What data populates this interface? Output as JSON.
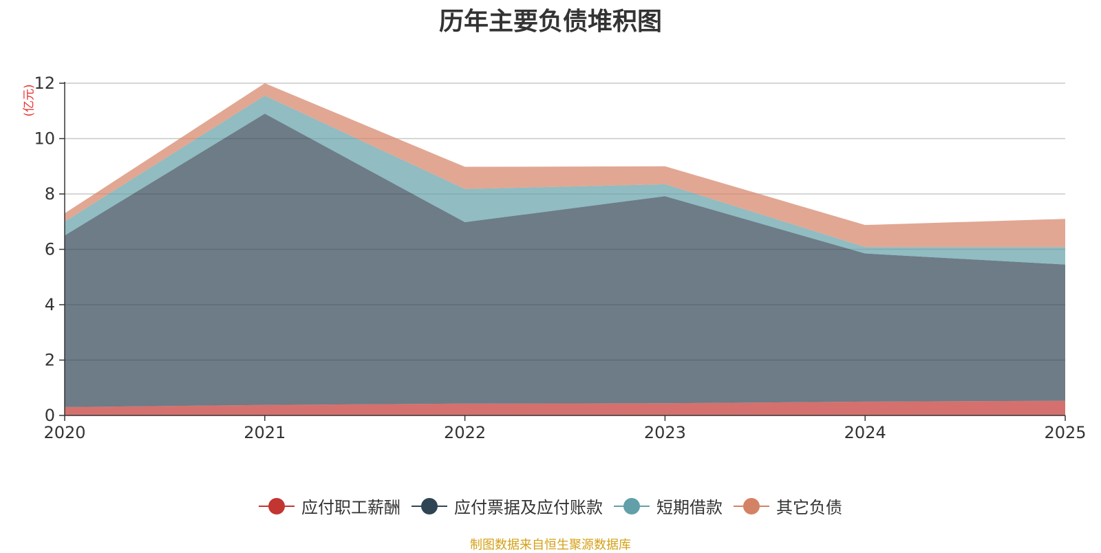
{
  "chart_data": {
    "type": "area",
    "stacked": true,
    "title": "历年主要负债堆积图",
    "ylabel": "(亿元)",
    "xlabel": "",
    "categories": [
      "2020",
      "2021",
      "2022",
      "2023",
      "2024",
      "2025"
    ],
    "ylim": [
      0,
      12
    ],
    "yticks": [
      0,
      2,
      4,
      6,
      8,
      10,
      12
    ],
    "grid": true,
    "legend_position": "bottom-center",
    "series": [
      {
        "name": "应付职工薪酬",
        "values": [
          0.3,
          0.38,
          0.43,
          0.44,
          0.5,
          0.53
        ],
        "color": "#c23531"
      },
      {
        "name": "应付票据及应付账款",
        "values": [
          6.2,
          10.52,
          6.55,
          7.48,
          5.35,
          4.92
        ],
        "color": "#2f4554"
      },
      {
        "name": "短期借款",
        "values": [
          0.5,
          0.65,
          1.2,
          0.43,
          0.23,
          0.63
        ],
        "color": "#61a0a8"
      },
      {
        "name": "其它负债",
        "values": [
          0.3,
          0.45,
          0.8,
          0.65,
          0.8,
          1.02
        ],
        "color": "#d48265"
      }
    ]
  },
  "source_note": "制图数据来自恒生聚源数据库"
}
